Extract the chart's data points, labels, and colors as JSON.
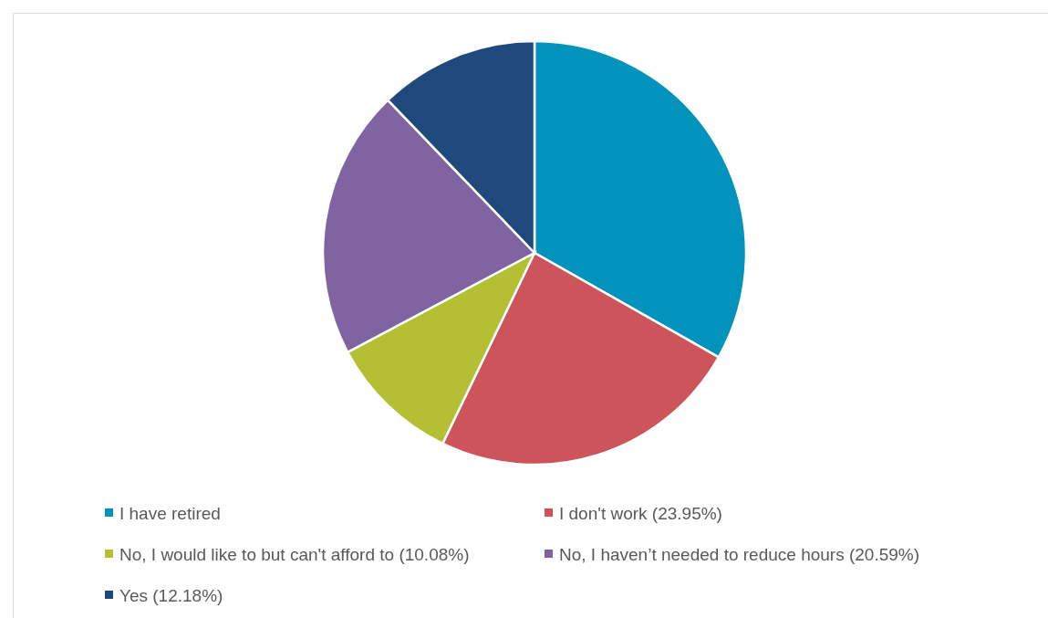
{
  "chart_data": {
    "type": "pie",
    "categories": [
      "I have retired",
      "I don't work (23.95%)",
      "No, I would like to but can't afford to (10.08%)",
      "No, I haven’t needed to reduce hours (20.59%)",
      "Yes (12.18%)"
    ],
    "values": [
      33.2,
      23.95,
      10.08,
      20.59,
      12.18
    ],
    "colors": [
      "#0293bd",
      "#cd545b",
      "#b4bf33",
      "#8064a2",
      "#1f497d"
    ],
    "legend": "bottom"
  }
}
